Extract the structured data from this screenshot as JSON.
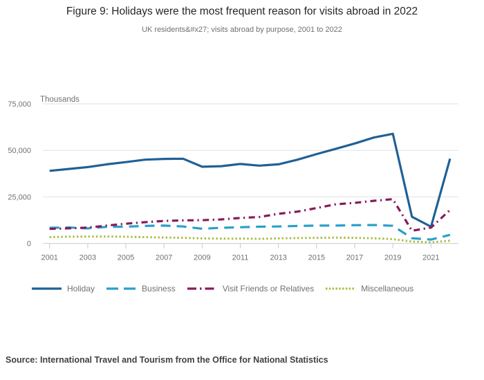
{
  "header": {
    "title": "Figure 9: Holidays were the most frequent reason for visits abroad in 2022",
    "subtitle": "UK residents&#x27; visits abroad by purpose, 2001 to 2022"
  },
  "footer": {
    "source": "Source: International Travel and Tourism from the Office for National Statistics"
  },
  "chart_data": {
    "type": "line",
    "title": "Figure 9: Holidays were the most frequent reason for visits abroad in 2022",
    "subtitle": "UK residents&#x27; visits abroad by purpose, 2001 to 2022",
    "unit_label": "Thousands",
    "xlabel": "",
    "ylabel": "Thousands",
    "x": [
      2001,
      2002,
      2003,
      2004,
      2005,
      2006,
      2007,
      2008,
      2009,
      2010,
      2011,
      2012,
      2013,
      2014,
      2015,
      2016,
      2017,
      2018,
      2019,
      2020,
      2021,
      2022
    ],
    "x_tick_labels": [
      "2001",
      "2003",
      "2005",
      "2007",
      "2009",
      "2011",
      "2013",
      "2015",
      "2017",
      "2019",
      "2021"
    ],
    "y_ticks": [
      0,
      25000,
      50000,
      75000
    ],
    "y_tick_labels": [
      "0",
      "25,000",
      "50,000",
      "75,000"
    ],
    "ylim": [
      0,
      75000
    ],
    "xlim": [
      2001,
      2022
    ],
    "grid": true,
    "legend_position": "bottom",
    "colors": {
      "grid": "#e2e2e2",
      "axis": "#c2c9d6",
      "text": "#707071"
    },
    "series": [
      {
        "name": "Holiday",
        "color": "#206095",
        "dash": "solid",
        "values": [
          39000,
          40000,
          41000,
          42500,
          43700,
          45000,
          45400,
          45500,
          41200,
          41500,
          42700,
          41800,
          42500,
          45000,
          48000,
          50800,
          53700,
          56900,
          58900,
          14300,
          9000,
          45500
        ]
      },
      {
        "name": "Business",
        "color": "#27A0CC",
        "dash": "dashed",
        "values": [
          8400,
          8600,
          8100,
          8900,
          9000,
          9400,
          9600,
          9100,
          7900,
          8400,
          8700,
          9000,
          9100,
          9400,
          9600,
          9600,
          9800,
          9900,
          9500,
          2800,
          2100,
          4600
        ]
      },
      {
        "name": "Visit Friends or Relatives",
        "color": "#871A5B",
        "dash": "dashdot",
        "values": [
          7800,
          8100,
          8500,
          9600,
          10600,
          11400,
          12100,
          12400,
          12500,
          12900,
          13700,
          14200,
          15900,
          17100,
          19000,
          21000,
          21800,
          22900,
          23800,
          6800,
          8500,
          18000
        ]
      },
      {
        "name": "Miscellaneous",
        "color": "#A8BD3A",
        "dash": "dotted",
        "values": [
          3400,
          3600,
          3700,
          3700,
          3600,
          3400,
          3200,
          3000,
          2700,
          2600,
          2600,
          2500,
          2700,
          2900,
          3000,
          3100,
          3000,
          2800,
          2300,
          1000,
          600,
          1500
        ]
      }
    ]
  }
}
